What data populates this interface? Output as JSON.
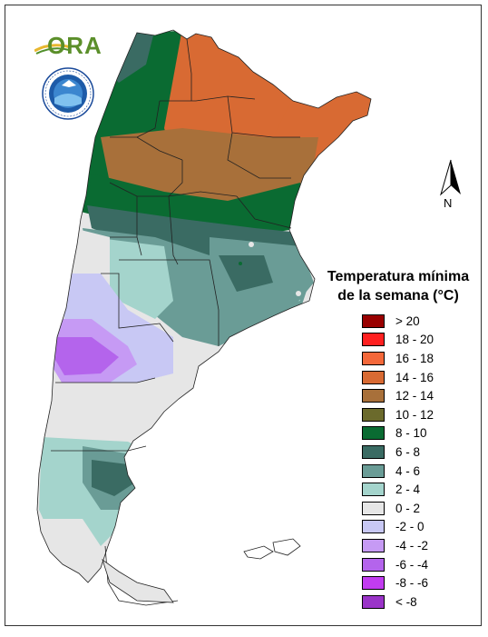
{
  "legend": {
    "title_line1": "Temperatura mínima",
    "title_line2": "de la semana (°C)",
    "items": [
      {
        "label": "> 20",
        "color": "#990000"
      },
      {
        "label": "18 - 20",
        "color": "#ff2020"
      },
      {
        "label": "16 - 18",
        "color": "#f4683a"
      },
      {
        "label": "14 - 16",
        "color": "#d86a33"
      },
      {
        "label": "12 - 14",
        "color": "#a8703a"
      },
      {
        "label": "10 - 12",
        "color": "#6b6a2c"
      },
      {
        "label": "8 - 10",
        "color": "#0a6b32"
      },
      {
        "label": "6 - 8",
        "color": "#3a6b63"
      },
      {
        "label": "4 - 6",
        "color": "#6a9c96"
      },
      {
        "label": "2 - 4",
        "color": "#a4d4cc"
      },
      {
        "label": "0 - 2",
        "color": "#e6e6e6"
      },
      {
        "label": "-2 - 0",
        "color": "#c8c8f4"
      },
      {
        "label": "-4 - -2",
        "color": "#c69af4"
      },
      {
        "label": "-6 - -4",
        "color": "#b464ec"
      },
      {
        "label": "-8 - -6",
        "color": "#c23cf0"
      },
      {
        "label": "< -8",
        "color": "#9a34c8"
      }
    ]
  },
  "north_arrow": {
    "letter": "N",
    "icon": "north-arrow-icon"
  },
  "logo": {
    "text": "ORA",
    "icon": "ora-logo-icon"
  },
  "seal": {
    "icon": "smn-argentina-seal-icon"
  }
}
